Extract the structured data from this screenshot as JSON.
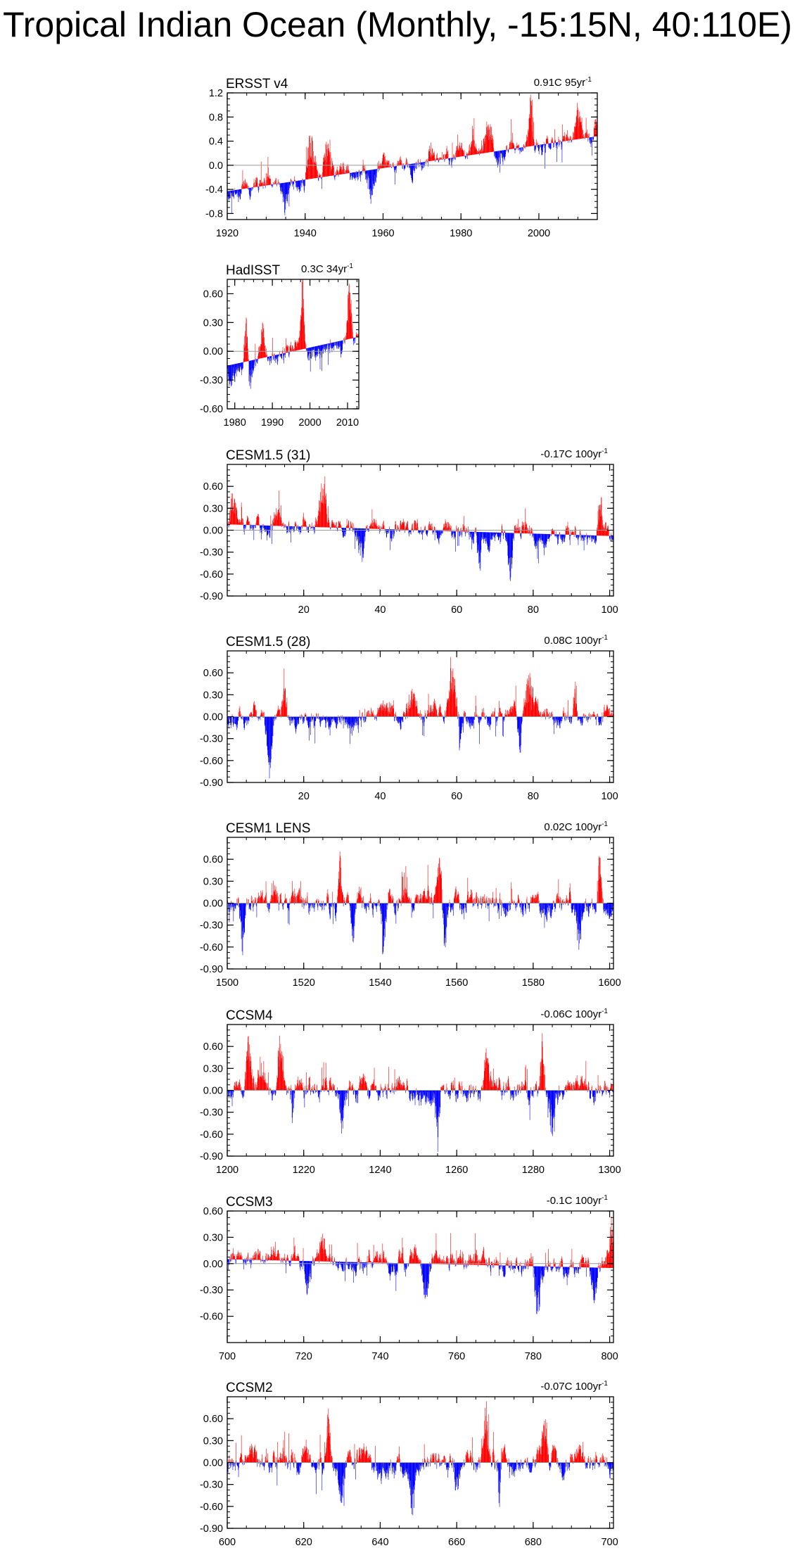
{
  "title": "Tropical Indian Ocean (Monthly, -15:15N, 40:110E)",
  "colors": {
    "positive": "#ff0000",
    "negative": "#0000ff",
    "line": "#000000",
    "zero": "#999999"
  },
  "chart_data": [
    {
      "type": "bar",
      "name": "ERSST v4",
      "trend_value": "0.91C 95yr",
      "trend_exp": "-1",
      "xlim": [
        1920,
        2015
      ],
      "ylim": [
        -0.9,
        1.2
      ],
      "xticks": [
        1920,
        1940,
        1960,
        1980,
        2000
      ],
      "xtick_labels": [
        "1920",
        "1940",
        "1960",
        "1980",
        "2000"
      ],
      "yticks": [
        -0.8,
        -0.4,
        0.0,
        0.4,
        0.8,
        1.2
      ],
      "ytick_labels": [
        "-0.8",
        "-0.4",
        "0.0",
        "0.4",
        "0.8",
        "1.2"
      ],
      "baseline": [
        -0.43,
        0.48
      ],
      "seed": 11,
      "amp": 0.2,
      "events": [
        [
          1941.5,
          0.55,
          1.3
        ],
        [
          1946,
          0.45,
          1.2
        ],
        [
          1935,
          -0.35,
          1.0
        ],
        [
          1957,
          -0.35,
          1.5
        ],
        [
          1998,
          0.6,
          0.8
        ],
        [
          1987,
          0.4,
          1.0
        ],
        [
          2010,
          0.35,
          1.0
        ],
        [
          2015,
          0.3,
          1.0
        ],
        [
          1983,
          0.3,
          0.6
        ],
        [
          1972,
          0.2,
          0.6
        ]
      ]
    },
    {
      "type": "bar",
      "name": "HadISST",
      "trend_value": "0.3C 34yr",
      "trend_exp": "-1",
      "xlim": [
        1978,
        2013
      ],
      "ylim": [
        -0.6,
        0.75
      ],
      "xticks": [
        1980,
        1990,
        2000,
        2010
      ],
      "xtick_labels": [
        "1980",
        "1990",
        "2000",
        "2010"
      ],
      "yticks": [
        -0.6,
        -0.3,
        0.0,
        0.3,
        0.6
      ],
      "ytick_labels": [
        "-0.60",
        "-0.30",
        "0.00",
        "0.30",
        "0.60"
      ],
      "baseline": [
        -0.15,
        0.15
      ],
      "seed": 23,
      "amp": 0.14,
      "events": [
        [
          1983,
          0.35,
          0.6
        ],
        [
          1987.5,
          0.35,
          0.7
        ],
        [
          1998,
          0.55,
          0.5
        ],
        [
          2010.5,
          0.45,
          0.6
        ],
        [
          1984,
          -0.2,
          0.8
        ],
        [
          1979,
          -0.1,
          0.6
        ]
      ]
    },
    {
      "type": "bar",
      "name": "CESM1.5 (31)",
      "trend_value": "-0.17C 100yr",
      "trend_exp": "-1",
      "xlim": [
        0,
        101
      ],
      "ylim": [
        -0.9,
        0.9
      ],
      "xticks": [
        20,
        40,
        60,
        80,
        100
      ],
      "xtick_labels": [
        "20",
        "40",
        "60",
        "80",
        "100"
      ],
      "yticks": [
        -0.9,
        -0.6,
        -0.3,
        0.0,
        0.3,
        0.6
      ],
      "ytick_labels": [
        "-0.90",
        "-0.60",
        "-0.30",
        "0.00",
        "0.30",
        "0.60"
      ],
      "baseline": [
        0.08,
        -0.08
      ],
      "seed": 37,
      "amp": 0.16,
      "events": [
        [
          25,
          0.5,
          1.2
        ],
        [
          1.5,
          0.35,
          1.0
        ],
        [
          74,
          -0.55,
          0.6
        ],
        [
          66,
          -0.45,
          0.5
        ],
        [
          35,
          -0.35,
          1.0
        ],
        [
          97.5,
          0.3,
          0.8
        ],
        [
          13,
          0.25,
          1.0
        ]
      ]
    },
    {
      "type": "bar",
      "name": "CESM1.5 (28)",
      "trend_value": "0.08C 100yr",
      "trend_exp": "-1",
      "xlim": [
        0,
        101
      ],
      "ylim": [
        -0.9,
        0.9
      ],
      "xticks": [
        20,
        40,
        60,
        80,
        100
      ],
      "xtick_labels": [
        "20",
        "40",
        "60",
        "80",
        "100"
      ],
      "yticks": [
        -0.9,
        -0.6,
        -0.3,
        0.0,
        0.3,
        0.6
      ],
      "ytick_labels": [
        "-0.90",
        "-0.60",
        "-0.30",
        "0.00",
        "0.30",
        "0.60"
      ],
      "baseline": [
        0.0,
        0.0
      ],
      "seed": 53,
      "amp": 0.18,
      "events": [
        [
          59,
          0.5,
          1.5
        ],
        [
          79,
          0.45,
          1.2
        ],
        [
          91,
          0.45,
          0.6
        ],
        [
          11,
          -0.55,
          0.8
        ],
        [
          61,
          -0.45,
          0.8
        ],
        [
          76.5,
          -0.4,
          0.6
        ],
        [
          48,
          0.3,
          1.5
        ],
        [
          15,
          0.3,
          0.8
        ]
      ]
    },
    {
      "type": "bar",
      "name": "CESM1 LENS",
      "trend_value": "0.02C 100yr",
      "trend_exp": "-1",
      "xlim": [
        1500,
        1601
      ],
      "ylim": [
        -0.9,
        0.9
      ],
      "xticks": [
        1500,
        1520,
        1540,
        1560,
        1580,
        1600
      ],
      "xtick_labels": [
        "1500",
        "1520",
        "1540",
        "1560",
        "1580",
        "1600"
      ],
      "yticks": [
        -0.9,
        -0.6,
        -0.3,
        0.0,
        0.3,
        0.6
      ],
      "ytick_labels": [
        "-0.90",
        "-0.60",
        "-0.30",
        "0.00",
        "0.30",
        "0.60"
      ],
      "baseline": [
        0.0,
        0.0
      ],
      "seed": 71,
      "amp": 0.2,
      "events": [
        [
          1529.5,
          0.55,
          0.7
        ],
        [
          1555.5,
          0.5,
          0.7
        ],
        [
          1597.5,
          0.5,
          0.6
        ],
        [
          1541,
          -0.6,
          0.8
        ],
        [
          1557,
          -0.5,
          0.7
        ],
        [
          1504,
          -0.45,
          0.6
        ],
        [
          1592,
          -0.4,
          0.8
        ],
        [
          1533,
          -0.45,
          0.8
        ]
      ]
    },
    {
      "type": "bar",
      "name": "CCSM4",
      "trend_value": "-0.06C 100yr",
      "trend_exp": "-1",
      "xlim": [
        1200,
        1301
      ],
      "ylim": [
        -0.9,
        0.9
      ],
      "xticks": [
        1200,
        1220,
        1240,
        1260,
        1280,
        1300
      ],
      "xtick_labels": [
        "1200",
        "1220",
        "1240",
        "1260",
        "1280",
        "1300"
      ],
      "yticks": [
        -0.9,
        -0.6,
        -0.3,
        0.0,
        0.3,
        0.6
      ],
      "ytick_labels": [
        "-0.90",
        "-0.60",
        "-0.30",
        "0.00",
        "0.30",
        "0.60"
      ],
      "baseline": [
        0.0,
        0.0
      ],
      "seed": 89,
      "amp": 0.2,
      "events": [
        [
          1205.5,
          0.55,
          0.8
        ],
        [
          1214,
          0.5,
          0.8
        ],
        [
          1282.5,
          0.55,
          0.6
        ],
        [
          1285,
          -0.5,
          0.8
        ],
        [
          1230,
          -0.4,
          0.8
        ],
        [
          1255,
          -0.45,
          0.8
        ],
        [
          1217,
          -0.4,
          0.7
        ],
        [
          1268,
          0.35,
          0.8
        ]
      ]
    },
    {
      "type": "bar",
      "name": "CCSM3",
      "trend_value": "-0.1C 100yr",
      "trend_exp": "-1",
      "xlim": [
        700,
        801
      ],
      "ylim": [
        -0.9,
        0.6
      ],
      "xticks": [
        700,
        720,
        740,
        760,
        780,
        800
      ],
      "xtick_labels": [
        "700",
        "720",
        "740",
        "760",
        "780",
        "800"
      ],
      "yticks": [
        -0.6,
        -0.3,
        0.0,
        0.3,
        0.6
      ],
      "ytick_labels": [
        "-0.60",
        "-0.30",
        "0.00",
        "0.30",
        "0.60"
      ],
      "baseline": [
        0.05,
        -0.05
      ],
      "seed": 97,
      "amp": 0.15,
      "events": [
        [
          725,
          0.3,
          0.8
        ],
        [
          781,
          -0.45,
          1.0
        ],
        [
          800.5,
          0.35,
          0.6
        ],
        [
          752,
          -0.35,
          0.8
        ],
        [
          796,
          -0.3,
          0.8
        ],
        [
          721,
          -0.3,
          0.7
        ]
      ]
    },
    {
      "type": "bar",
      "name": "CCSM2",
      "trend_value": "-0.07C 100yr",
      "trend_exp": "-1",
      "xlim": [
        600,
        701
      ],
      "ylim": [
        -0.9,
        0.9
      ],
      "xticks": [
        600,
        620,
        640,
        660,
        680,
        700
      ],
      "xtick_labels": [
        "600",
        "620",
        "640",
        "660",
        "680",
        "700"
      ],
      "yticks": [
        -0.9,
        -0.6,
        -0.3,
        0.0,
        0.3,
        0.6
      ],
      "ytick_labels": [
        "-0.90",
        "-0.60",
        "-0.30",
        "0.00",
        "0.30",
        "0.60"
      ],
      "baseline": [
        0.0,
        0.0
      ],
      "seed": 113,
      "amp": 0.22,
      "events": [
        [
          626.5,
          0.5,
          0.6
        ],
        [
          648.5,
          -0.6,
          0.6
        ],
        [
          671,
          -0.55,
          0.7
        ],
        [
          660,
          -0.45,
          0.8
        ],
        [
          683,
          0.45,
          0.7
        ],
        [
          630,
          -0.4,
          0.8
        ],
        [
          667.5,
          0.4,
          0.7
        ]
      ]
    }
  ]
}
